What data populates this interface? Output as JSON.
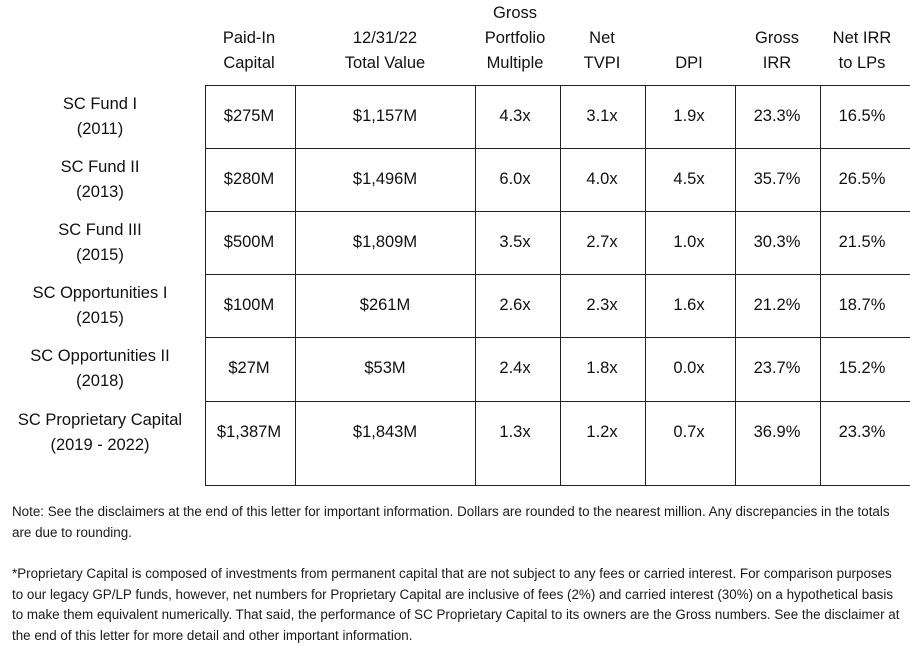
{
  "table": {
    "columns": [
      [
        "Paid-In",
        "Capital"
      ],
      [
        "12/31/22",
        "Total Value"
      ],
      [
        "Gross",
        "Portfolio",
        "Multiple"
      ],
      [
        "Net",
        "TVPI"
      ],
      [
        "DPI"
      ],
      [
        "Gross",
        "IRR"
      ],
      [
        "Net IRR",
        "to LPs"
      ]
    ],
    "rows": [
      {
        "fund": [
          "SC Fund I",
          "(2011)"
        ],
        "values": [
          "$275M",
          "$1,157M",
          "4.3x",
          "3.1x",
          "1.9x",
          "23.3%",
          "16.5%"
        ]
      },
      {
        "fund": [
          "SC Fund II",
          "(2013)"
        ],
        "values": [
          "$280M",
          "$1,496M",
          "6.0x",
          "4.0x",
          "4.5x",
          "35.7%",
          "26.5%"
        ]
      },
      {
        "fund": [
          "SC Fund III",
          "(2015)"
        ],
        "values": [
          "$500M",
          "$1,809M",
          "3.5x",
          "2.7x",
          "1.0x",
          "30.3%",
          "21.5%"
        ]
      },
      {
        "fund": [
          "SC Opportunities I",
          "(2015)"
        ],
        "values": [
          "$100M",
          "$261M",
          "2.6x",
          "2.3x",
          "1.6x",
          "21.2%",
          "18.7%"
        ]
      },
      {
        "fund": [
          "SC Opportunities II",
          "(2018)"
        ],
        "values": [
          "$27M",
          "$53M",
          "2.4x",
          "1.8x",
          "0.0x",
          "23.7%",
          "15.2%"
        ]
      },
      {
        "fund": [
          "SC Proprietary Capital",
          "(2019 - 2022)"
        ],
        "values": [
          "$1,387M",
          "$1,843M",
          "1.3x",
          "1.2x",
          "0.7x",
          "36.9%",
          "23.3%"
        ]
      }
    ]
  },
  "notes": {
    "note1": "Note: See the disclaimers at the end of this letter for important information. Dollars are rounded to the nearest million. Any discrepancies in the totals are due to rounding.",
    "note2": "*Proprietary Capital is composed of investments from permanent capital that are not subject to any fees or carried interest. For comparison purposes to our legacy GP/LP funds, however, net numbers for Proprietary Capital are inclusive of fees (2%) and carried interest (30%) on a hypothetical basis to make them equivalent numerically.  That said, the performance of SC Proprietary Capital to its owners are the Gross numbers. See the disclaimer at the end of this letter for more detail and other important information."
  }
}
